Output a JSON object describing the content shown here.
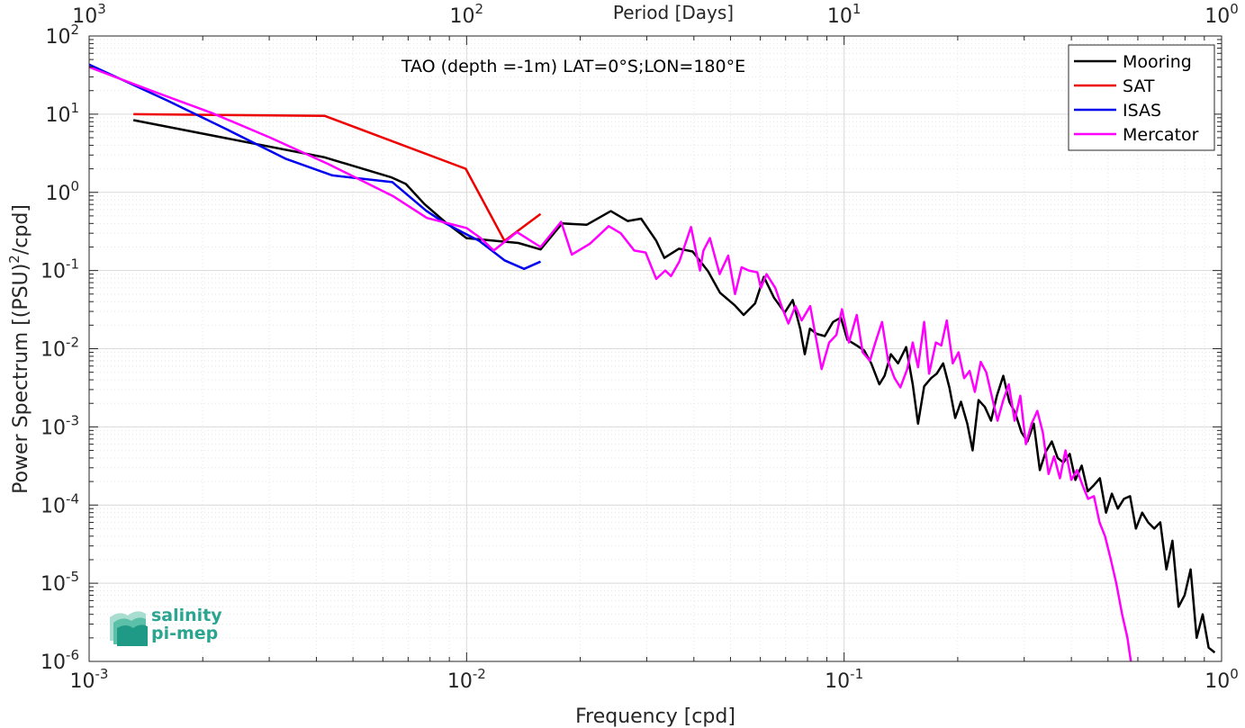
{
  "chart_data": {
    "type": "line",
    "title": "TAO (depth =-1m) LAT=0°S;LON=180°E",
    "xlabel": "Frequency [cpd]",
    "ylabel": "Power Spectrum [(PSU)²/cpd]",
    "top_xlabel": "Period [Days]",
    "x_scale": "log",
    "y_scale": "log",
    "xlim": [
      0.001,
      1
    ],
    "ylim": [
      1e-06,
      100
    ],
    "grid": true,
    "legend_position": "top-right",
    "x_ticks": [
      {
        "value": 0.001,
        "base": "10",
        "exp": "-3"
      },
      {
        "value": 0.01,
        "base": "10",
        "exp": "-2"
      },
      {
        "value": 0.1,
        "base": "10",
        "exp": "-1"
      },
      {
        "value": 1,
        "base": "10",
        "exp": "0"
      }
    ],
    "y_ticks": [
      {
        "value": 100,
        "base": "10",
        "exp": "2"
      },
      {
        "value": 10,
        "base": "10",
        "exp": "1"
      },
      {
        "value": 1,
        "base": "10",
        "exp": "0"
      },
      {
        "value": 0.1,
        "base": "10",
        "exp": "-1"
      },
      {
        "value": 0.01,
        "base": "10",
        "exp": "-2"
      },
      {
        "value": 0.001,
        "base": "10",
        "exp": "-3"
      },
      {
        "value": 0.0001,
        "base": "10",
        "exp": "-4"
      },
      {
        "value": 1e-05,
        "base": "10",
        "exp": "-5"
      },
      {
        "value": 1e-06,
        "base": "10",
        "exp": "-6"
      }
    ],
    "top_ticks": [
      {
        "value": 0.001,
        "base": "10",
        "exp": "3"
      },
      {
        "value": 0.01,
        "base": "10",
        "exp": "2"
      },
      {
        "value": 0.1,
        "base": "10",
        "exp": "1"
      },
      {
        "value": 1,
        "base": "10",
        "exp": "0"
      }
    ],
    "series": [
      {
        "name": "Mooring",
        "color": "#000000",
        "points": [
          [
            0.00131,
            8.4
          ],
          [
            0.00421,
            2.8
          ],
          [
            0.00633,
            1.55
          ],
          [
            0.0069,
            1.28
          ],
          [
            0.00773,
            0.71
          ],
          [
            0.00876,
            0.42
          ],
          [
            0.00999,
            0.26
          ],
          [
            0.0137,
            0.225
          ],
          [
            0.0157,
            0.186
          ],
          [
            0.0179,
            0.4
          ],
          [
            0.0208,
            0.385
          ],
          [
            0.0241,
            0.575
          ],
          [
            0.0267,
            0.43
          ],
          [
            0.029,
            0.46
          ],
          [
            0.0318,
            0.24
          ],
          [
            0.0334,
            0.145
          ],
          [
            0.0365,
            0.19
          ],
          [
            0.0397,
            0.175
          ],
          [
            0.0436,
            0.098
          ],
          [
            0.0469,
            0.052
          ],
          [
            0.0513,
            0.036
          ],
          [
            0.0542,
            0.027
          ],
          [
            0.0581,
            0.038
          ],
          [
            0.0613,
            0.083
          ],
          [
            0.0652,
            0.045
          ],
          [
            0.0696,
            0.029
          ],
          [
            0.0731,
            0.042
          ],
          [
            0.0765,
            0.018
          ],
          [
            0.0787,
            0.0085
          ],
          [
            0.0812,
            0.018
          ],
          [
            0.0846,
            0.0155
          ],
          [
            0.0889,
            0.0145
          ],
          [
            0.0935,
            0.022
          ],
          [
            0.098,
            0.025
          ],
          [
            0.102,
            0.013
          ],
          [
            0.108,
            0.011
          ],
          [
            0.113,
            0.0095
          ],
          [
            0.118,
            0.0065
          ],
          [
            0.124,
            0.0035
          ],
          [
            0.128,
            0.0045
          ],
          [
            0.133,
            0.0085
          ],
          [
            0.139,
            0.0065
          ],
          [
            0.146,
            0.0105
          ],
          [
            0.152,
            0.0035
          ],
          [
            0.157,
            0.0011
          ],
          [
            0.163,
            0.0033
          ],
          [
            0.17,
            0.0042
          ],
          [
            0.176,
            0.0048
          ],
          [
            0.183,
            0.0065
          ],
          [
            0.19,
            0.0032
          ],
          [
            0.197,
            0.0013
          ],
          [
            0.204,
            0.0021
          ],
          [
            0.212,
            0.0011
          ],
          [
            0.219,
            0.0005
          ],
          [
            0.227,
            0.0022
          ],
          [
            0.236,
            0.0018
          ],
          [
            0.245,
            0.0012
          ],
          [
            0.254,
            0.0025
          ],
          [
            0.264,
            0.0045
          ],
          [
            0.274,
            0.0021
          ],
          [
            0.284,
            0.0015
          ],
          [
            0.295,
            0.00085
          ],
          [
            0.306,
            0.00065
          ],
          [
            0.318,
            0.0011
          ],
          [
            0.33,
            0.00028
          ],
          [
            0.342,
            0.00048
          ],
          [
            0.355,
            0.00065
          ],
          [
            0.368,
            0.0004
          ],
          [
            0.381,
            0.00035
          ],
          [
            0.396,
            0.00045
          ],
          [
            0.41,
            0.00021
          ],
          [
            0.426,
            0.00032
          ],
          [
            0.442,
            0.00015
          ],
          [
            0.459,
            0.00018
          ],
          [
            0.476,
            0.00022
          ],
          [
            0.494,
            8e-05
          ],
          [
            0.512,
            0.00014
          ],
          [
            0.531,
            9e-05
          ],
          [
            0.551,
            0.00012
          ],
          [
            0.572,
            0.00013
          ],
          [
            0.593,
            5e-05
          ],
          [
            0.616,
            8e-05
          ],
          [
            0.639,
            6e-05
          ],
          [
            0.663,
            5e-05
          ],
          [
            0.688,
            6e-05
          ],
          [
            0.714,
            1.5e-05
          ],
          [
            0.741,
            3.5e-05
          ],
          [
            0.769,
            5e-06
          ],
          [
            0.798,
            7e-06
          ],
          [
            0.828,
            1.5e-05
          ],
          [
            0.859,
            2e-06
          ],
          [
            0.891,
            4e-06
          ],
          [
            0.924,
            1.5e-06
          ],
          [
            0.959,
            1.3e-06
          ]
        ]
      },
      {
        "name": "SAT",
        "color": "#ee0000",
        "points": [
          [
            0.00131,
            10.0
          ],
          [
            0.00421,
            9.5
          ],
          [
            0.00995,
            2.0
          ],
          [
            0.0126,
            0.24
          ],
          [
            0.0157,
            0.53
          ]
        ]
      },
      {
        "name": "ISAS",
        "color": "#0000ee",
        "points": [
          [
            0.001,
            43.0
          ],
          [
            0.00161,
            15.0
          ],
          [
            0.00233,
            6.3
          ],
          [
            0.00331,
            2.7
          ],
          [
            0.00441,
            1.65
          ],
          [
            0.00636,
            1.35
          ],
          [
            0.00782,
            0.58
          ],
          [
            0.00872,
            0.41
          ],
          [
            0.01,
            0.29
          ],
          [
            0.0108,
            0.24
          ],
          [
            0.0126,
            0.135
          ],
          [
            0.0142,
            0.105
          ],
          [
            0.0157,
            0.13
          ]
        ]
      },
      {
        "name": "Mercator",
        "color": "#ff00ff",
        "points": [
          [
            0.001,
            40.0
          ],
          [
            0.00146,
            20.0
          ],
          [
            0.00213,
            10.2
          ],
          [
            0.00302,
            5.0
          ],
          [
            0.0043,
            2.3
          ],
          [
            0.00637,
            0.9
          ],
          [
            0.00785,
            0.47
          ],
          [
            0.01,
            0.35
          ],
          [
            0.0109,
            0.26
          ],
          [
            0.0118,
            0.18
          ],
          [
            0.0136,
            0.31
          ],
          [
            0.0157,
            0.2
          ],
          [
            0.0178,
            0.42
          ],
          [
            0.019,
            0.16
          ],
          [
            0.0212,
            0.22
          ],
          [
            0.0238,
            0.37
          ],
          [
            0.0256,
            0.3
          ],
          [
            0.0278,
            0.18
          ],
          [
            0.0298,
            0.17
          ],
          [
            0.0318,
            0.078
          ],
          [
            0.0336,
            0.1
          ],
          [
            0.0348,
            0.085
          ],
          [
            0.0366,
            0.13
          ],
          [
            0.0393,
            0.36
          ],
          [
            0.0415,
            0.1
          ],
          [
            0.0424,
            0.18
          ],
          [
            0.0441,
            0.26
          ],
          [
            0.0468,
            0.09
          ],
          [
            0.0493,
            0.155
          ],
          [
            0.0514,
            0.05
          ],
          [
            0.0535,
            0.11
          ],
          [
            0.0559,
            0.1
          ],
          [
            0.0589,
            0.095
          ],
          [
            0.0602,
            0.06
          ],
          [
            0.0623,
            0.09
          ],
          [
            0.0657,
            0.06
          ],
          [
            0.0686,
            0.033
          ],
          [
            0.0712,
            0.021
          ],
          [
            0.0743,
            0.035
          ],
          [
            0.0772,
            0.023
          ],
          [
            0.0813,
            0.035
          ],
          [
            0.0832,
            0.019
          ],
          [
            0.0872,
            0.0055
          ],
          [
            0.0913,
            0.012
          ],
          [
            0.0954,
            0.015
          ],
          [
            0.0987,
            0.032
          ],
          [
            0.103,
            0.012
          ],
          [
            0.108,
            0.027
          ],
          [
            0.112,
            0.009
          ],
          [
            0.117,
            0.007
          ],
          [
            0.121,
            0.012
          ],
          [
            0.126,
            0.022
          ],
          [
            0.131,
            0.0068
          ],
          [
            0.136,
            0.0042
          ],
          [
            0.141,
            0.0032
          ],
          [
            0.147,
            0.0055
          ],
          [
            0.152,
            0.012
          ],
          [
            0.157,
            0.0058
          ],
          [
            0.163,
            0.022
          ],
          [
            0.168,
            0.0048
          ],
          [
            0.175,
            0.012
          ],
          [
            0.181,
            0.011
          ],
          [
            0.187,
            0.023
          ],
          [
            0.194,
            0.0065
          ],
          [
            0.201,
            0.009
          ],
          [
            0.208,
            0.0042
          ],
          [
            0.215,
            0.0052
          ],
          [
            0.222,
            0.0028
          ],
          [
            0.23,
            0.0068
          ],
          [
            0.238,
            0.005
          ],
          [
            0.246,
            0.0025
          ],
          [
            0.255,
            0.0012
          ],
          [
            0.264,
            0.0022
          ],
          [
            0.273,
            0.0035
          ],
          [
            0.283,
            0.0012
          ],
          [
            0.293,
            0.0025
          ],
          [
            0.303,
            0.0006
          ],
          [
            0.314,
            0.0011
          ],
          [
            0.325,
            0.0016
          ],
          [
            0.336,
            0.00085
          ],
          [
            0.348,
            0.00025
          ],
          [
            0.36,
            0.00042
          ],
          [
            0.373,
            0.00022
          ],
          [
            0.386,
            0.0005
          ],
          [
            0.4,
            0.00021
          ],
          [
            0.414,
            0.00028
          ],
          [
            0.428,
            0.00018
          ],
          [
            0.443,
            0.00012
          ],
          [
            0.459,
            0.00013
          ],
          [
            0.475,
            6e-05
          ],
          [
            0.491,
            4e-05
          ],
          [
            0.509,
            2e-05
          ],
          [
            0.526,
            1e-05
          ],
          [
            0.545,
            4e-06
          ],
          [
            0.563,
            2e-06
          ],
          [
            0.575,
            1e-06
          ]
        ]
      }
    ]
  },
  "logo": {
    "line1": "salinity",
    "line2": "pi-mep"
  }
}
